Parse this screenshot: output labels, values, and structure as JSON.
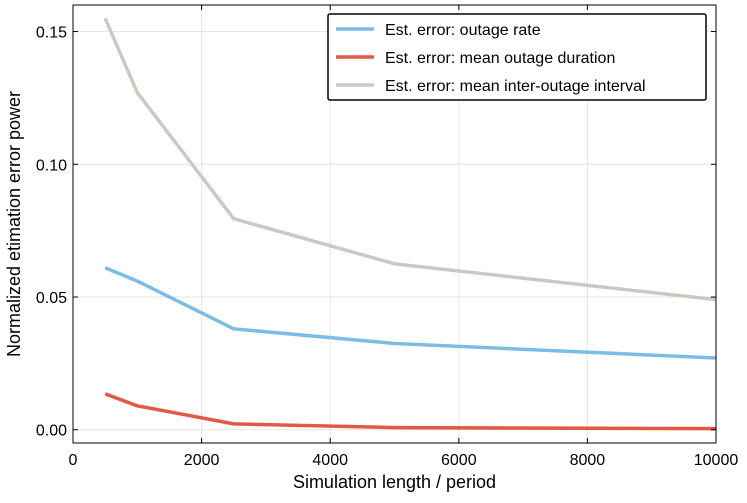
{
  "chart_data": {
    "type": "line",
    "title": "",
    "xlabel": "Simulation length / period",
    "ylabel": "Normalized etimation error power",
    "xlim": [
      0,
      10000
    ],
    "ylim": [
      -0.005,
      0.16
    ],
    "x_ticks": [
      0,
      2000,
      4000,
      6000,
      8000,
      10000
    ],
    "x_tick_labels": [
      "0",
      "2000",
      "4000",
      "6000",
      "8000",
      "10000"
    ],
    "y_ticks": [
      0.0,
      0.05,
      0.1,
      0.15
    ],
    "y_tick_labels": [
      "0.00",
      "0.05",
      "0.10",
      "0.15"
    ],
    "grid": true,
    "legend_position": "top-right",
    "x": [
      500,
      1000,
      2500,
      5000,
      10000
    ],
    "series": [
      {
        "name": "Est. error: outage rate",
        "color": "#7cbde6",
        "values": [
          0.061,
          0.056,
          0.038,
          0.0325,
          0.027
        ]
      },
      {
        "name": "Est. error: mean outage duration",
        "color": "#e05a45",
        "values": [
          0.0135,
          0.009,
          0.0022,
          0.0008,
          0.0004
        ]
      },
      {
        "name": "Est. error: mean inter-outage interval",
        "color": "#cfc7c2",
        "values": [
          0.155,
          0.127,
          0.0795,
          0.0625,
          0.049
        ]
      }
    ]
  }
}
